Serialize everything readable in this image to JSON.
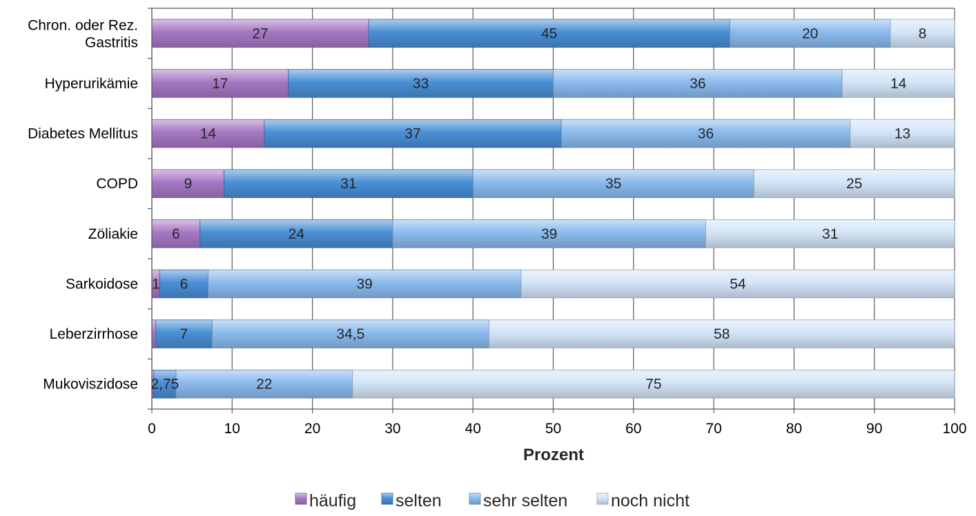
{
  "chart_data": {
    "type": "bar",
    "orientation": "horizontal",
    "stacked": true,
    "categories": [
      "Chron. oder  Rez. Gastritis",
      "Hyperurikämie",
      "Diabetes Mellitus",
      "COPD",
      "Zöliakie",
      "Sarkoidose",
      "Leberzirrhose",
      "Mukoviszidose"
    ],
    "series": [
      {
        "name": "häufig",
        "color": "#a678c4",
        "values": [
          27,
          17,
          14,
          9,
          6,
          1,
          0.5,
          0.25
        ],
        "labels": [
          "27",
          "17",
          "14",
          "9",
          "6",
          "1",
          "",
          ""
        ]
      },
      {
        "name": "selten",
        "color": "#4a8fd6",
        "values": [
          45,
          33,
          37,
          31,
          24,
          6,
          7,
          2.75
        ],
        "labels": [
          "45",
          "33",
          "37",
          "31",
          "24",
          "6",
          "7",
          "2,75"
        ]
      },
      {
        "name": "sehr selten",
        "color": "#8bbbee",
        "values": [
          20,
          36,
          36,
          35,
          39,
          39,
          34.5,
          22
        ],
        "labels": [
          "20",
          "36",
          "36",
          "35",
          "39",
          "39",
          "34,5",
          "22"
        ]
      },
      {
        "name": "noch nicht",
        "color": "#d3e5f8",
        "values": [
          8,
          14,
          13,
          25,
          31,
          54,
          58,
          75
        ],
        "labels": [
          "8",
          "14",
          "13",
          "25",
          "31",
          "54",
          "58",
          "75"
        ]
      }
    ],
    "xlabel": "Prozent",
    "ylabel": "",
    "xlim": [
      0,
      100
    ],
    "xticks": [
      0,
      10,
      20,
      30,
      40,
      50,
      60,
      70,
      80,
      90,
      100
    ],
    "grid": true,
    "legend_position": "bottom"
  }
}
